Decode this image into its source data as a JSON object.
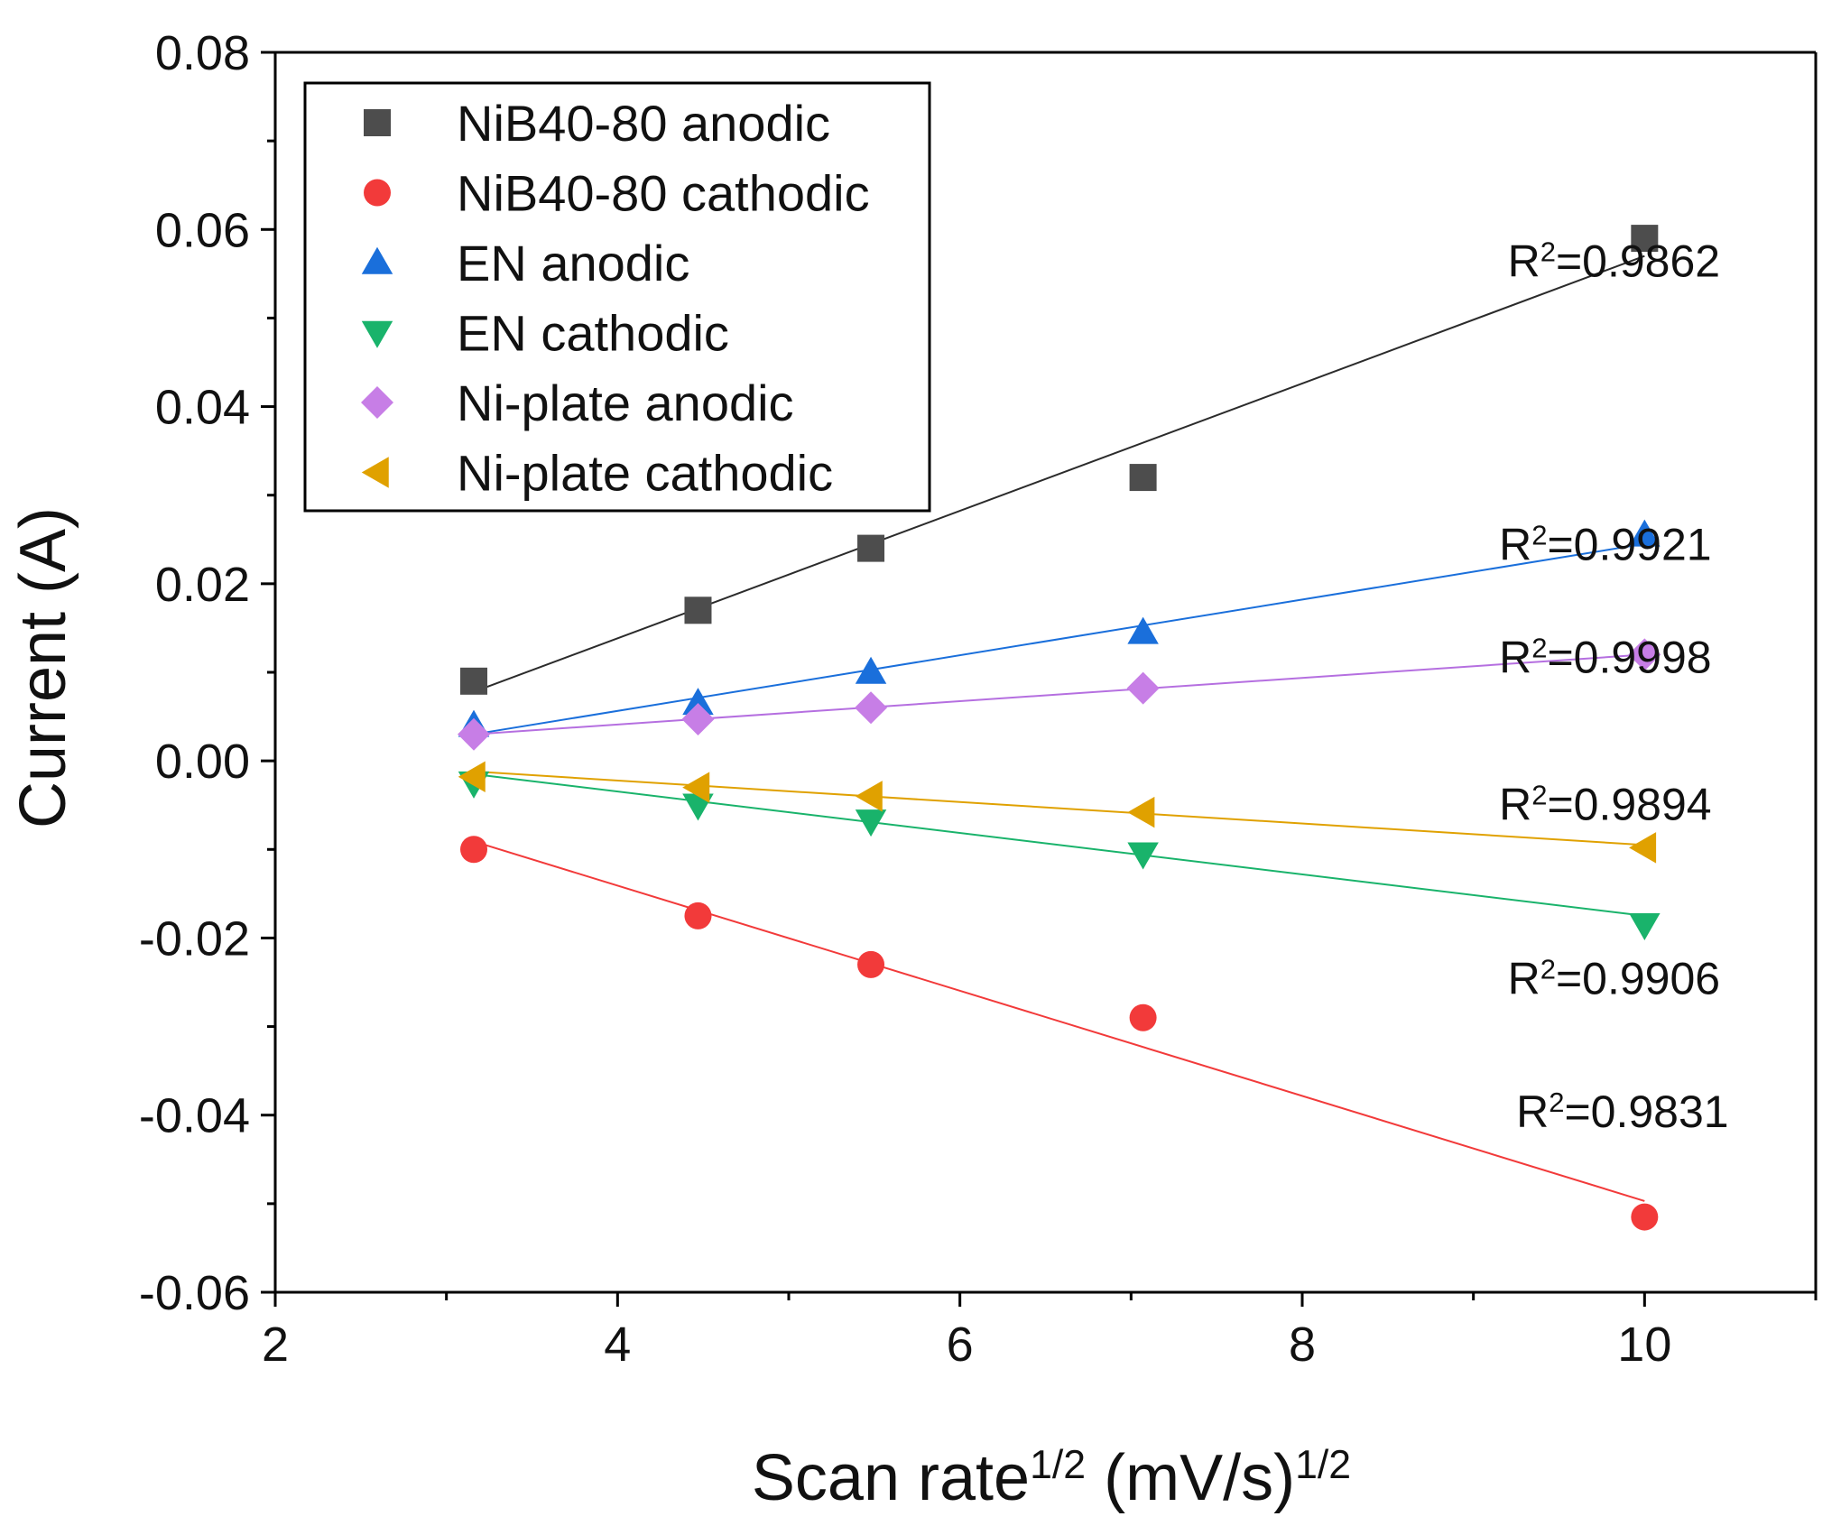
{
  "chart_data": {
    "type": "scatter",
    "title": "",
    "xlabel": {
      "base": "Scan rate",
      "base_exp": "1/2",
      "unit": " (mV/s)",
      "unit_exp": "1/2"
    },
    "ylabel": "Current (A)",
    "xlim": [
      2,
      11
    ],
    "ylim": [
      -0.06,
      0.08
    ],
    "x_ticks": [
      2,
      4,
      6,
      8,
      10
    ],
    "y_ticks": [
      -0.06,
      -0.04,
      -0.02,
      0.0,
      0.02,
      0.04,
      0.06,
      0.08
    ],
    "x_tick_labels": [
      "2",
      "4",
      "6",
      "8",
      "10"
    ],
    "y_tick_labels": [
      "-0.06",
      "-0.04",
      "-0.02",
      "0.00",
      "0.02",
      "0.04",
      "0.06",
      "0.08"
    ],
    "grid": false,
    "legend_position": "top-left",
    "x": [
      3.16,
      4.47,
      5.48,
      7.07,
      10.0
    ],
    "series": [
      {
        "name": "NiB40-80 anodic",
        "marker": "square",
        "color": "#4d4d4d",
        "values": [
          0.009,
          0.017,
          0.024,
          0.032,
          0.059
        ],
        "fit": {
          "start": 0.0078,
          "end": 0.057,
          "color": "#2b2b2b"
        },
        "r2_label": {
          "prefix": "R",
          "exp": "2",
          "value": "=0.9862",
          "at": [
            9.2,
            0.0565
          ]
        }
      },
      {
        "name": "NiB40-80 cathodic",
        "marker": "circle",
        "color": "#f23a3a",
        "values": [
          -0.01,
          -0.0175,
          -0.023,
          -0.029,
          -0.0515
        ],
        "fit": {
          "start": -0.0091,
          "end": -0.0497,
          "color": "#f23a3a"
        },
        "r2_label": {
          "prefix": "R",
          "exp": "2",
          "value": "=0.9831",
          "at": [
            9.25,
            -0.0395
          ]
        }
      },
      {
        "name": "EN anodic",
        "marker": "triangle-up",
        "color": "#1a6fdb",
        "values": [
          0.004,
          0.0065,
          0.01,
          0.0145,
          0.0255
        ],
        "fit": {
          "start": 0.003,
          "end": 0.0245,
          "color": "#1a6fdb"
        },
        "r2_label": {
          "prefix": "R",
          "exp": "2",
          "value": "=0.9921",
          "at": [
            9.15,
            0.0245
          ]
        }
      },
      {
        "name": "EN cathodic",
        "marker": "triangle-down",
        "color": "#19b36b",
        "values": [
          -0.0025,
          -0.005,
          -0.0068,
          -0.0105,
          -0.0185
        ],
        "fit": {
          "start": -0.0015,
          "end": -0.0175,
          "color": "#19b36b"
        },
        "r2_label": {
          "prefix": "R",
          "exp": "2",
          "value": "=0.9906",
          "at": [
            9.2,
            -0.0245
          ]
        }
      },
      {
        "name": "Ni-plate anodic",
        "marker": "diamond",
        "color": "#c77ee6",
        "values": [
          0.003,
          0.0047,
          0.006,
          0.0082,
          0.012
        ],
        "fit": {
          "start": 0.003,
          "end": 0.012,
          "color": "#b56fe0"
        },
        "r2_label": {
          "prefix": "R",
          "exp": "2",
          "value": "=0.9998",
          "at": [
            9.15,
            0.0118
          ]
        }
      },
      {
        "name": "Ni-plate cathodic",
        "marker": "triangle-left",
        "color": "#e0a100",
        "values": [
          -0.0018,
          -0.003,
          -0.004,
          -0.0058,
          -0.0098
        ],
        "fit": {
          "start": -0.0012,
          "end": -0.0095,
          "color": "#e0a100"
        },
        "r2_label": {
          "prefix": "R",
          "exp": "2",
          "value": "=0.9894",
          "at": [
            9.15,
            -0.0048
          ]
        }
      }
    ]
  }
}
